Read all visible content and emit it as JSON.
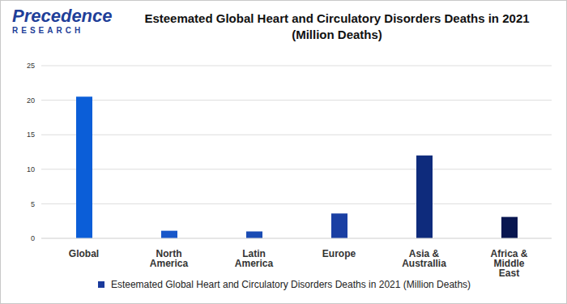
{
  "logo": {
    "name": "Precedence",
    "tagline": "RESEARCH"
  },
  "chart_data": {
    "type": "bar",
    "title": "Esteemated Global Heart and Circulatory Disorders Deaths in 2021 (Million Deaths)",
    "categories": [
      "Global",
      "North America",
      "Latin America",
      "Europe",
      "Asia & Australlia",
      "Africa & Middle East"
    ],
    "series": [
      {
        "name": "Esteemated Global Heart and Circulatory Disorders Deaths in 2021 (Million Deaths)",
        "color": "#1a3a9c",
        "values": [
          20.5,
          1.1,
          1.0,
          3.6,
          12.0,
          3.1
        ]
      }
    ],
    "colors": [
      "#0b5ed8",
      "#1857c9",
      "#1a4cb4",
      "#1a3fa3",
      "#0e2b7c",
      "#081650"
    ],
    "ylim": [
      0,
      25
    ],
    "yticks": [
      0,
      5,
      10,
      15,
      20,
      25
    ],
    "grid": true,
    "legend": "bottom"
  }
}
